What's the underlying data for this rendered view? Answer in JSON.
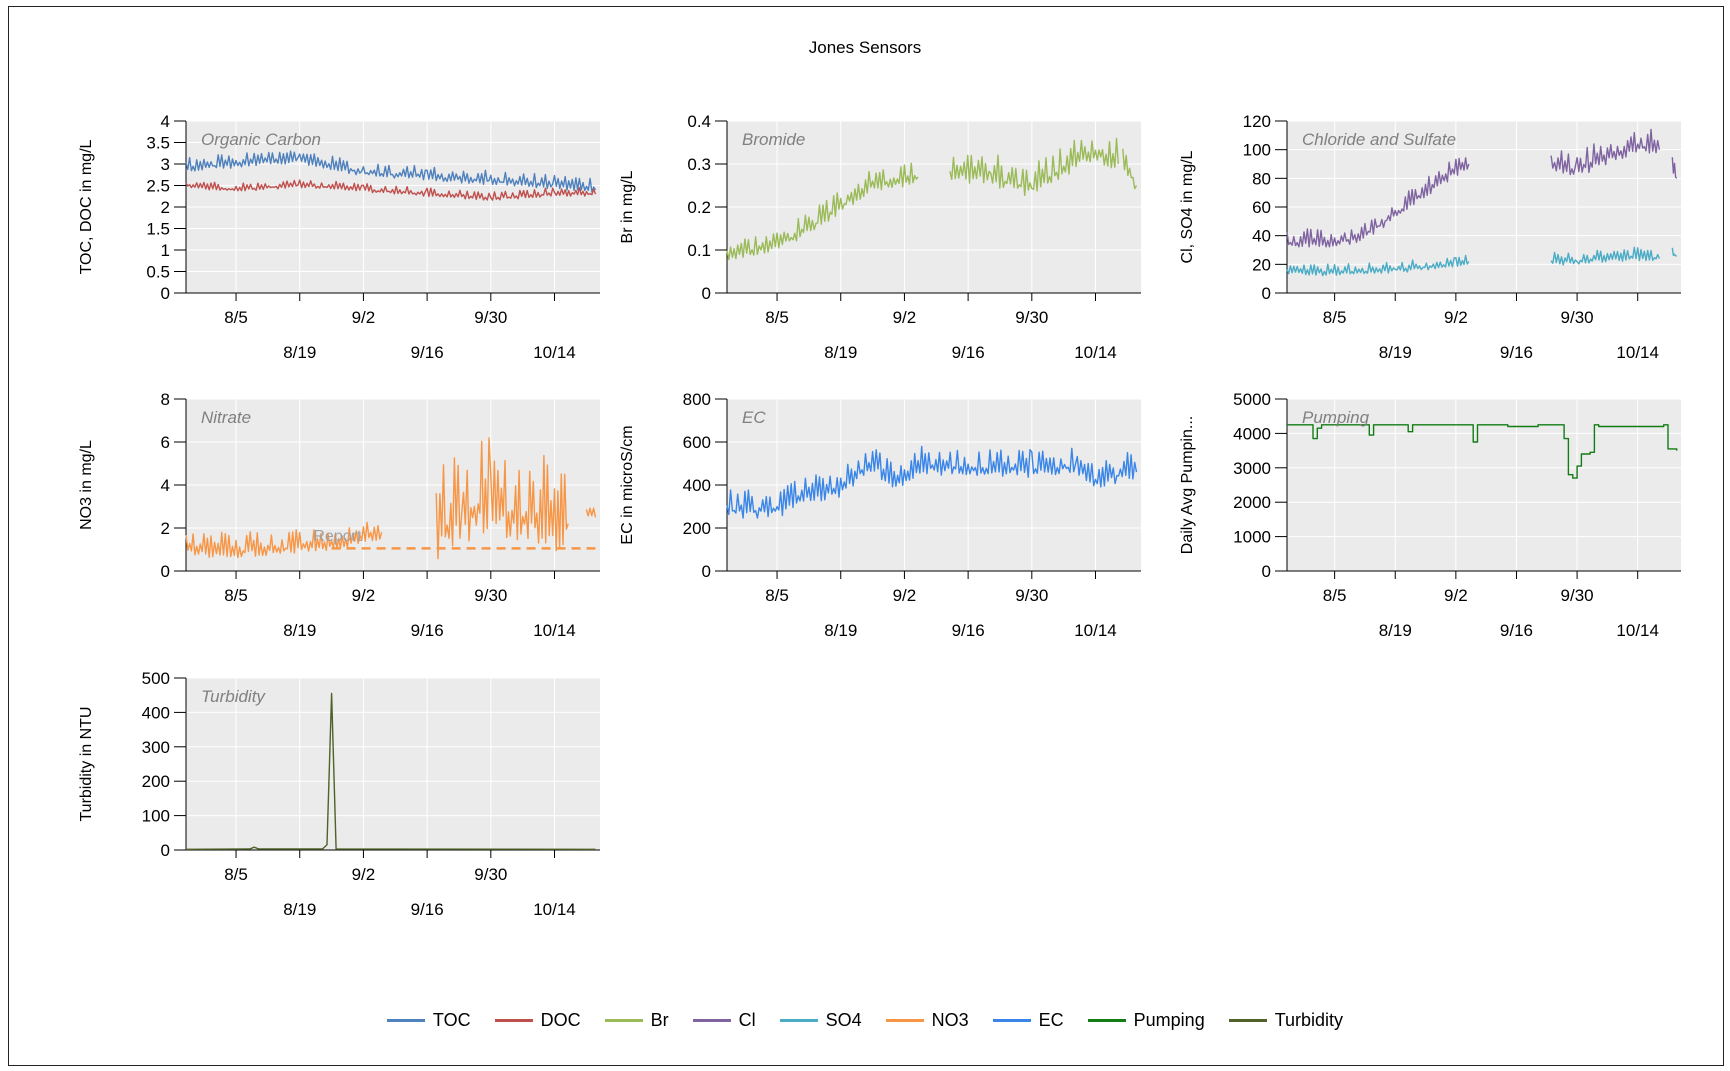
{
  "title": "Jones Sensors",
  "colors": {
    "TOC": "#4f81bd",
    "DOC": "#c0504d",
    "Br": "#9bbb59",
    "Cl": "#8064a2",
    "SO4": "#4bacc6",
    "NO3": "#f79646",
    "EC": "#3a86e8",
    "Pumping": "#117d14",
    "Turbidity": "#4f6228"
  },
  "legend": [
    "TOC",
    "DOC",
    "Br",
    "Cl",
    "SO4",
    "NO3",
    "EC",
    "Pumping",
    "Turbidity"
  ],
  "chart_data": [
    {
      "type": "line",
      "panel_title": "Organic Carbon",
      "ylabel": "TOC, DOC in mg/L",
      "ylim": [
        0,
        4
      ],
      "yticks": [
        "0",
        "0.5",
        "1",
        "1.5",
        "2",
        "2.5",
        "3",
        "3.5",
        "4"
      ],
      "x_ticks_row1": [
        "8/5",
        "9/2",
        "9/30"
      ],
      "x_ticks_row2": [
        "8/19",
        "9/16",
        "10/14"
      ],
      "series": [
        {
          "name": "TOC",
          "x": [
            "7/25",
            "8/5",
            "8/19",
            "9/2",
            "9/16",
            "9/30",
            "10/14",
            "10/23"
          ],
          "y": [
            2.9,
            3.0,
            3.1,
            2.8,
            2.7,
            2.6,
            2.5,
            2.4
          ],
          "noise": 0.25,
          "seed": 1
        },
        {
          "name": "DOC",
          "x": [
            "7/25",
            "8/5",
            "8/19",
            "9/2",
            "9/16",
            "9/30",
            "10/14",
            "10/23"
          ],
          "y": [
            2.5,
            2.4,
            2.5,
            2.4,
            2.3,
            2.2,
            2.3,
            2.3
          ],
          "noise": 0.15,
          "seed": 2
        }
      ],
      "grid": true
    },
    {
      "type": "line",
      "panel_title": "Bromide",
      "ylabel": "Br in mg/L",
      "ylim": [
        0,
        0.4
      ],
      "yticks": [
        "0",
        "0.1",
        "0.2",
        "0.3",
        "0.4"
      ],
      "x_ticks_row1": [
        "8/5",
        "9/2",
        "9/30"
      ],
      "x_ticks_row2": [
        "8/19",
        "9/16",
        "10/14"
      ],
      "series": [
        {
          "name": "Br",
          "x": [
            "7/25",
            "8/5",
            "8/12",
            "8/19",
            "8/26",
            "9/2",
            "9/5"
          ],
          "y": [
            0.09,
            0.11,
            0.15,
            0.2,
            0.25,
            0.26,
            0.27
          ],
          "noise": 0.04,
          "seed": 3
        },
        {
          "name": "Br",
          "x": [
            "9/12",
            "9/21",
            "9/30",
            "10/7",
            "10/14",
            "10/19"
          ],
          "y": [
            0.28,
            0.27,
            0.24,
            0.29,
            0.33,
            0.3
          ],
          "noise": 0.06,
          "seed": 4
        },
        {
          "name": "Br",
          "x": [
            "10/20",
            "10/23"
          ],
          "y": [
            0.3,
            0.25
          ],
          "noise": 0.04,
          "seed": 5
        }
      ],
      "grid": true
    },
    {
      "type": "line",
      "panel_title": "Chloride and Sulfate",
      "ylabel": "Cl, SO4 in mg/L",
      "ylim": [
        0,
        120
      ],
      "yticks": [
        "0",
        "20",
        "40",
        "60",
        "80",
        "100",
        "120"
      ],
      "x_ticks_row1": [
        "8/5",
        "9/2",
        "9/30"
      ],
      "x_ticks_row2": [
        "8/19",
        "9/16",
        "10/14"
      ],
      "series": [
        {
          "name": "Cl",
          "x": [
            "7/25",
            "8/5",
            "8/12",
            "8/19",
            "8/26",
            "9/2",
            "9/5"
          ],
          "y": [
            35,
            35,
            40,
            55,
            70,
            85,
            90
          ],
          "noise": 10,
          "seed": 6
        },
        {
          "name": "Cl",
          "x": [
            "9/24",
            "9/30",
            "10/7",
            "10/14",
            "10/19"
          ],
          "y": [
            88,
            85,
            95,
            102,
            100
          ],
          "noise": 14,
          "seed": 7
        },
        {
          "name": "Cl",
          "x": [
            "10/22",
            "10/23"
          ],
          "y": [
            90,
            80
          ],
          "noise": 12,
          "seed": 8
        },
        {
          "name": "SO4",
          "x": [
            "7/25",
            "8/5",
            "8/19",
            "9/2",
            "9/5"
          ],
          "y": [
            15,
            14,
            16,
            20,
            22
          ],
          "noise": 6,
          "seed": 9
        },
        {
          "name": "SO4",
          "x": [
            "9/24",
            "9/30",
            "10/7",
            "10/14",
            "10/19"
          ],
          "y": [
            22,
            22,
            24,
            25,
            24
          ],
          "noise": 7,
          "seed": 10
        },
        {
          "name": "SO4",
          "x": [
            "10/22",
            "10/23"
          ],
          "y": [
            27,
            26
          ],
          "noise": 5,
          "seed": 11
        }
      ],
      "grid": true
    },
    {
      "type": "line",
      "panel_title": "Nitrate",
      "ylabel": "NO3 in mg/L",
      "ylim": [
        0,
        8
      ],
      "yticks": [
        "0",
        "2",
        "4",
        "6",
        "8"
      ],
      "x_ticks_row1": [
        "8/5",
        "9/2",
        "9/30"
      ],
      "x_ticks_row2": [
        "8/19",
        "9/16",
        "10/14"
      ],
      "annotation": "Report",
      "reference_line": {
        "y": 1.05,
        "from": "8/26",
        "to": "10/23"
      },
      "series": [
        {
          "name": "NO3",
          "x": [
            "7/25",
            "8/5",
            "8/12",
            "8/19",
            "8/26",
            "9/2",
            "9/6"
          ],
          "y": [
            1.0,
            0.9,
            1.0,
            1.1,
            1.2,
            1.5,
            1.8
          ],
          "noise": 0.9,
          "seed": 12
        },
        {
          "name": "NO3",
          "x": [
            "9/18",
            "9/24",
            "9/30",
            "10/7",
            "10/14",
            "10/17"
          ],
          "y": [
            1.6,
            2.5,
            3.0,
            2.5,
            2.0,
            2.2
          ],
          "noise": 3.5,
          "seed": 13
        },
        {
          "name": "NO3",
          "x": [
            "10/21",
            "10/23"
          ],
          "y": [
            2.7,
            2.5
          ],
          "noise": 0.4,
          "seed": 14
        }
      ],
      "grid": true
    },
    {
      "type": "line",
      "panel_title": "EC",
      "ylabel": "EC in microS/cm",
      "ylim": [
        0,
        800
      ],
      "yticks": [
        "0",
        "200",
        "400",
        "600",
        "800"
      ],
      "x_ticks_row1": [
        "8/5",
        "9/2",
        "9/30"
      ],
      "x_ticks_row2": [
        "8/19",
        "9/16",
        "10/14"
      ],
      "series": [
        {
          "name": "EC",
          "x": [
            "7/25",
            "8/5",
            "8/12",
            "8/19",
            "8/26",
            "8/30",
            "9/2",
            "9/5",
            "9/16",
            "9/30",
            "10/10",
            "10/14",
            "10/23"
          ],
          "y": [
            280,
            280,
            350,
            380,
            500,
            420,
            420,
            480,
            480,
            470,
            480,
            420,
            460
          ],
          "noise": 100,
          "seed": 15
        }
      ],
      "grid": true
    },
    {
      "type": "line",
      "panel_title": "Pumping",
      "ylabel": "Daily Avg Pumpin...",
      "ylim": [
        0,
        5000
      ],
      "yticks": [
        "0",
        "1000",
        "2000",
        "3000",
        "4000",
        "5000"
      ],
      "x_ticks_row1": [
        "8/5",
        "9/2",
        "9/30"
      ],
      "x_ticks_row2": [
        "8/19",
        "9/16",
        "10/14"
      ],
      "series": [
        {
          "name": "Pumping",
          "x": [
            "7/25",
            "7/30",
            "7/31",
            "8/1",
            "8/2",
            "8/12",
            "8/13",
            "8/14",
            "8/21",
            "8/22",
            "8/23",
            "9/5",
            "9/6",
            "9/7",
            "9/14",
            "9/21",
            "9/26",
            "9/27",
            "9/28",
            "9/29",
            "9/30",
            "10/1",
            "10/2",
            "10/3",
            "10/4",
            "10/5",
            "10/20",
            "10/21",
            "10/23"
          ],
          "y": [
            4250,
            4250,
            3850,
            4150,
            4250,
            4250,
            3950,
            4250,
            4250,
            4050,
            4250,
            4250,
            3750,
            4250,
            4200,
            4250,
            4250,
            3850,
            2800,
            2700,
            3050,
            3400,
            3400,
            3450,
            4250,
            4200,
            4250,
            3550,
            3500
          ]
        }
      ],
      "grid": true
    },
    {
      "type": "line",
      "panel_title": "Turbidity",
      "ylabel": "Turbidity in NTU",
      "ylim": [
        0,
        500
      ],
      "yticks": [
        "0",
        "100",
        "200",
        "300",
        "400",
        "500"
      ],
      "x_ticks_row1": [
        "8/5",
        "9/2",
        "9/30"
      ],
      "x_ticks_row2": [
        "8/19",
        "9/16",
        "10/14"
      ],
      "series": [
        {
          "name": "Turbidity",
          "x": [
            "7/25",
            "8/8",
            "8/9",
            "8/10",
            "8/24",
            "8/25",
            "8/26",
            "8/27",
            "10/23"
          ],
          "y": [
            2,
            3,
            8,
            3,
            3,
            15,
            455,
            3,
            2
          ]
        }
      ],
      "grid": true
    }
  ]
}
